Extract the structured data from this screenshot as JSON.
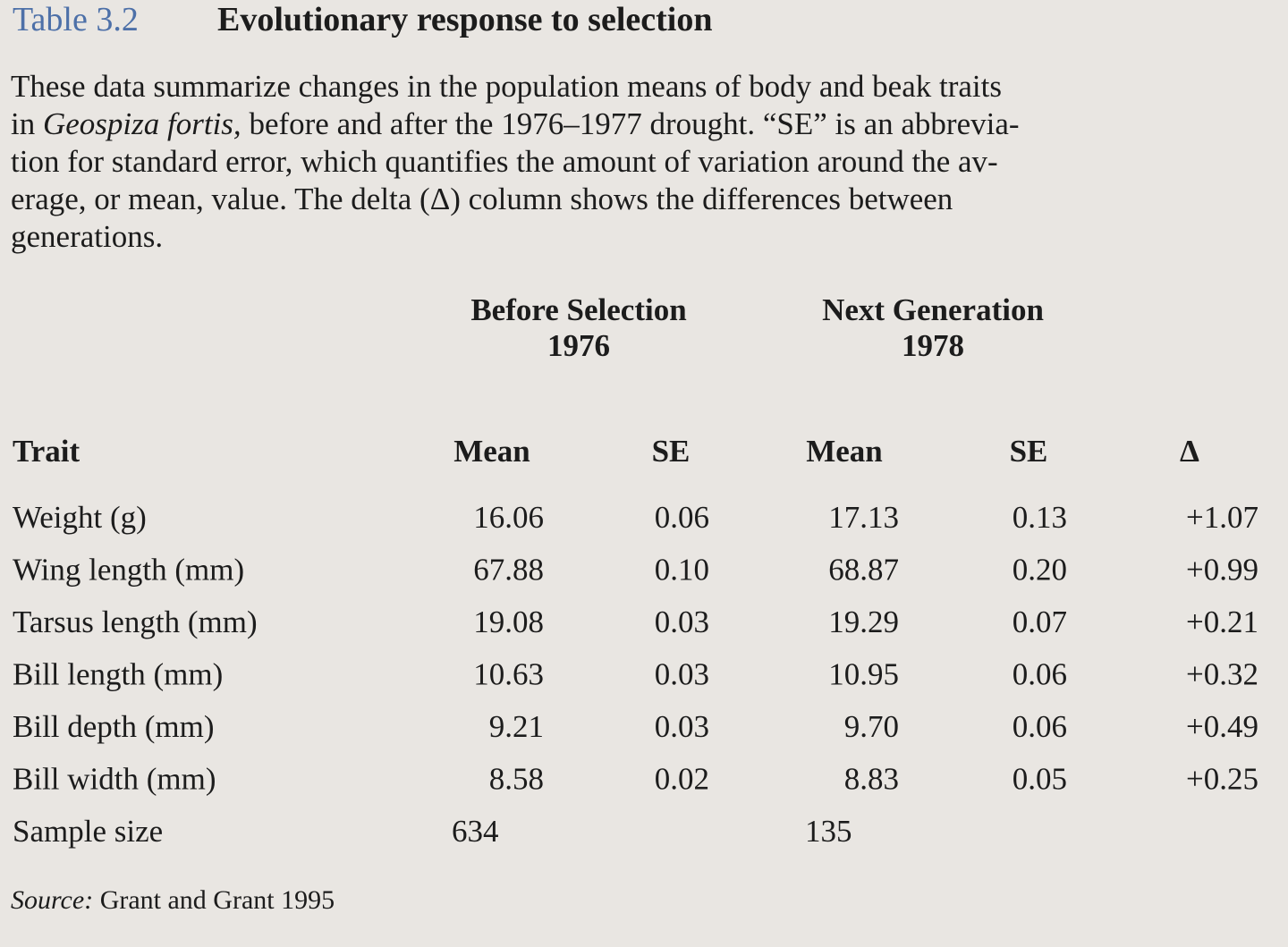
{
  "header": {
    "label": "Table 3.2",
    "title": "Evolutionary response to selection"
  },
  "caption": {
    "lines": [
      [
        {
          "text": "These data summarize changes in the population means of body and beak traits"
        }
      ],
      [
        {
          "text": "in "
        },
        {
          "text": "Geospiza fortis,",
          "italic": true
        },
        {
          "text": " before and after the 1976–1977 drought. “SE” is an abbrevia-"
        }
      ],
      [
        {
          "text": "tion for standard error, which quantifies the amount of variation around the av-"
        }
      ],
      [
        {
          "text": "erage, or mean, value. The delta (Δ) column shows the differences between"
        }
      ],
      [
        {
          "text": "generations."
        }
      ]
    ]
  },
  "table": {
    "groups": [
      {
        "label": "Before Selection",
        "year": "1976"
      },
      {
        "label": "Next Generation",
        "year": "1978"
      }
    ],
    "columns": [
      "Trait",
      "Mean",
      "SE",
      "Mean",
      "SE",
      "Δ"
    ],
    "rows": [
      [
        "Weight (g)",
        "16.06",
        "0.06",
        "17.13",
        "0.13",
        "+1.07"
      ],
      [
        "Wing length (mm)",
        "67.88",
        "0.10",
        "68.87",
        "0.20",
        "+0.99"
      ],
      [
        "Tarsus length (mm)",
        "19.08",
        "0.03",
        "19.29",
        "0.07",
        "+0.21"
      ],
      [
        "Bill length (mm)",
        "10.63",
        "0.03",
        "10.95",
        "0.06",
        "+0.32"
      ],
      [
        "Bill depth (mm)",
        "9.21",
        "0.03",
        "9.70",
        "0.06",
        "+0.49"
      ],
      [
        "Bill width (mm)",
        "8.58",
        "0.02",
        "8.83",
        "0.05",
        "+0.25"
      ]
    ],
    "sample_size": {
      "label": "Sample size",
      "values": [
        "634",
        "135"
      ]
    }
  },
  "source": {
    "label": "Source:",
    "text": "Grant and Grant 1995"
  }
}
